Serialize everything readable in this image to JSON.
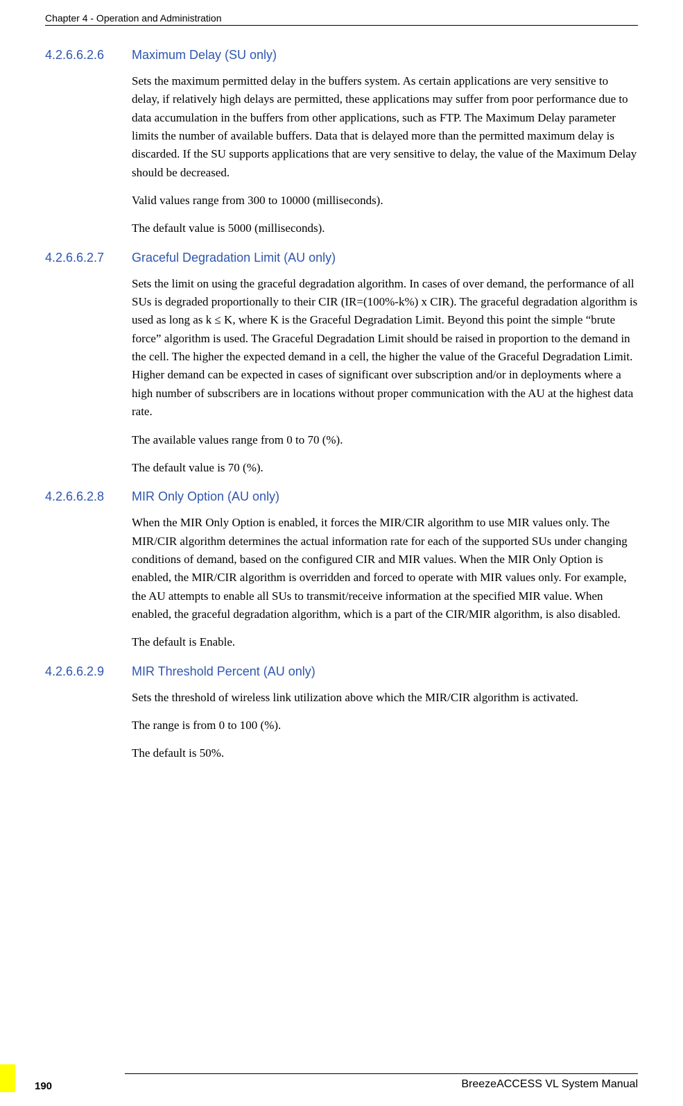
{
  "header": {
    "chapter": "Chapter 4 - Operation and Administration"
  },
  "sections": [
    {
      "num": "4.2.6.6.2.6",
      "title": "Maximum Delay (SU only)",
      "paras": [
        "Sets the maximum permitted delay in the buffers system. As certain applications are very sensitive to delay, if relatively high delays are permitted, these applications may suffer from poor performance due to data accumulation in the buffers from other applications, such as FTP. The Maximum Delay parameter limits the number of available buffers. Data that is delayed more than the permitted maximum delay is discarded. If the SU supports applications that are very sensitive to delay, the value of the Maximum Delay should be decreased.",
        "Valid values range from 300 to 10000 (milliseconds).",
        "The default value is 5000 (milliseconds)."
      ]
    },
    {
      "num": "4.2.6.6.2.7",
      "title": "Graceful Degradation Limit (AU only)",
      "paras": [
        "Sets the limit on using the graceful degradation algorithm. In cases of over demand, the performance of all SUs is degraded proportionally to their CIR (IR=(100%-k%) x CIR). The graceful degradation algorithm is used as long as k ≤ K, where K is the Graceful Degradation Limit. Beyond this point the simple “brute force” algorithm is used. The Graceful Degradation Limit should be raised in proportion to the demand in the cell. The higher the expected demand in a cell, the higher the value of the Graceful Degradation Limit. Higher demand can be expected in cases of significant over  subscription and/or in deployments where a high number of subscribers are in locations without proper communication with the AU at the highest data rate.",
        "The available values range from 0 to 70 (%).",
        "The default value is 70 (%)."
      ]
    },
    {
      "num": "4.2.6.6.2.8",
      "title": "MIR Only Option (AU only)",
      "paras": [
        "When the MIR Only Option is enabled, it forces the MIR/CIR algorithm to use MIR values only. The MIR/CIR algorithm determines the actual information rate for each of the supported SUs under changing conditions of demand, based on the configured CIR and MIR values. When the MIR Only Option is enabled, the MIR/CIR algorithm is overridden and forced to operate with MIR values only. For example, the AU attempts to enable all SUs to transmit/receive information at the specified MIR value. When enabled, the graceful degradation algorithm, which is a part of the CIR/MIR algorithm, is also disabled.",
        "The default is Enable."
      ]
    },
    {
      "num": "4.2.6.6.2.9",
      "title": "MIR Threshold Percent (AU only)",
      "paras": [
        "Sets the threshold of wireless link utilization above which the MIR/CIR algorithm is activated.",
        "The range is from 0 to 100 (%).",
        "The default is 50%."
      ]
    }
  ],
  "footer": {
    "brand": "BreezeACCESS VL System Manual",
    "page": "190"
  },
  "style": {
    "heading_color": "#2e56b0",
    "accent_color": "#ffff00",
    "body_font": "Georgia, serif",
    "heading_font": "Arial, sans-serif"
  }
}
